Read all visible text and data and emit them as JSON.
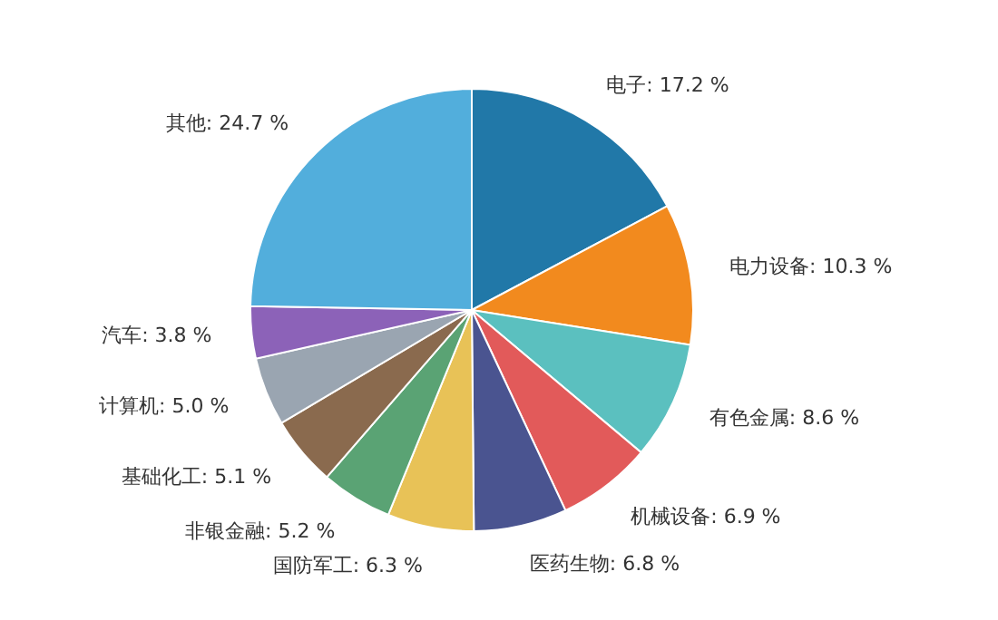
{
  "chart_data": {
    "type": "pie",
    "categories": [
      "电子",
      "电力设备",
      "有色金属",
      "机械设备",
      "医药生物",
      "国防军工",
      "非银金融",
      "基础化工",
      "计算机",
      "汽车",
      "其他"
    ],
    "values": [
      17.2,
      10.3,
      8.6,
      6.9,
      6.8,
      6.3,
      5.2,
      5.1,
      5.0,
      3.8,
      24.7
    ],
    "value_labels": [
      "17.2 %",
      "10.3 %",
      "8.6 %",
      "6.9 %",
      "6.8 %",
      "6.3 %",
      "5.2 %",
      "5.1 %",
      "5.0 %",
      "3.8 %",
      "24.7 %"
    ],
    "colors": [
      "#2178a8",
      "#f28a1e",
      "#5bc0bf",
      "#e25a5a",
      "#4a5490",
      "#e8c257",
      "#5aa374",
      "#8a6a4e",
      "#9aa5b1",
      "#8c62b8",
      "#52aedc"
    ]
  }
}
